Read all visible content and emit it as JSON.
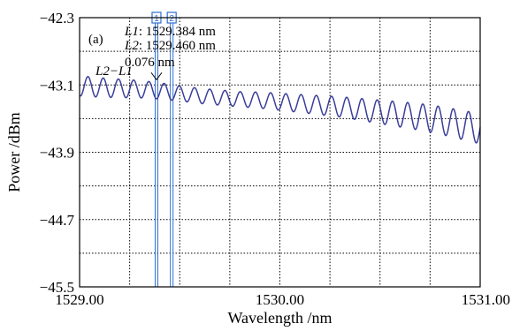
{
  "chart_data": {
    "type": "line",
    "panel_label": "(a)",
    "xlabel": "Wavelength /nm",
    "ylabel": "Power /dBm",
    "xlim": [
      1529.0,
      1531.0
    ],
    "ylim": [
      -45.5,
      -42.3
    ],
    "x_ticks": [
      1529.0,
      1529.25,
      1529.5,
      1529.75,
      1530.0,
      1530.25,
      1530.5,
      1530.75,
      1531.0
    ],
    "x_tick_labels": [
      "1529.00",
      "",
      "",
      "",
      "1530.00",
      "",
      "",
      "",
      "1531.00"
    ],
    "y_ticks": [
      -45.5,
      -45.1,
      -44.7,
      -44.3,
      -43.9,
      -43.5,
      -43.1,
      -42.7,
      -42.3
    ],
    "y_tick_labels": [
      "−45.5",
      "",
      "−44.7",
      "",
      "−43.9",
      "",
      "−43.1",
      "",
      "−42.3"
    ],
    "grid": true,
    "series": [
      {
        "color": "#3a3f9a",
        "fringe_spacing_nm": 0.076,
        "points": [
          [
            1529.0,
            -43.11
          ],
          [
            1529.1,
            -43.13
          ],
          [
            1529.2,
            -43.14
          ],
          [
            1529.3,
            -43.15
          ],
          [
            1529.4,
            -43.17
          ],
          [
            1529.5,
            -43.2
          ],
          [
            1529.6,
            -43.23
          ],
          [
            1529.7,
            -43.25
          ],
          [
            1529.8,
            -43.27
          ],
          [
            1529.9,
            -43.28
          ],
          [
            1530.0,
            -43.3
          ],
          [
            1530.1,
            -43.32
          ],
          [
            1530.2,
            -43.34
          ],
          [
            1530.3,
            -43.36
          ],
          [
            1530.4,
            -43.39
          ],
          [
            1530.5,
            -43.42
          ],
          [
            1530.6,
            -43.45
          ],
          [
            1530.7,
            -43.48
          ],
          [
            1530.8,
            -43.52
          ],
          [
            1530.9,
            -43.57
          ],
          [
            1531.0,
            -43.62
          ]
        ],
        "ripple_amplitude_db": [
          [
            1529.0,
            0.12
          ],
          [
            1529.2,
            0.11
          ],
          [
            1529.5,
            0.09
          ],
          [
            1529.8,
            0.09
          ],
          [
            1530.0,
            0.1
          ],
          [
            1530.3,
            0.12
          ],
          [
            1530.6,
            0.15
          ],
          [
            1531.0,
            0.18
          ]
        ]
      }
    ],
    "markers": [
      {
        "id": "1",
        "x": 1529.384,
        "name": "L1",
        "value_text": ": 1529.384 nm"
      },
      {
        "id": "2",
        "x": 1529.46,
        "name": "L2",
        "value_text": ": 1529.460 nm"
      }
    ],
    "delta": {
      "label": "L2−L1",
      "value_text": "0.076 nm"
    },
    "colors": {
      "trace": "#3a3f9a",
      "marker": "#2f6fd0",
      "grid": "#000000"
    }
  }
}
